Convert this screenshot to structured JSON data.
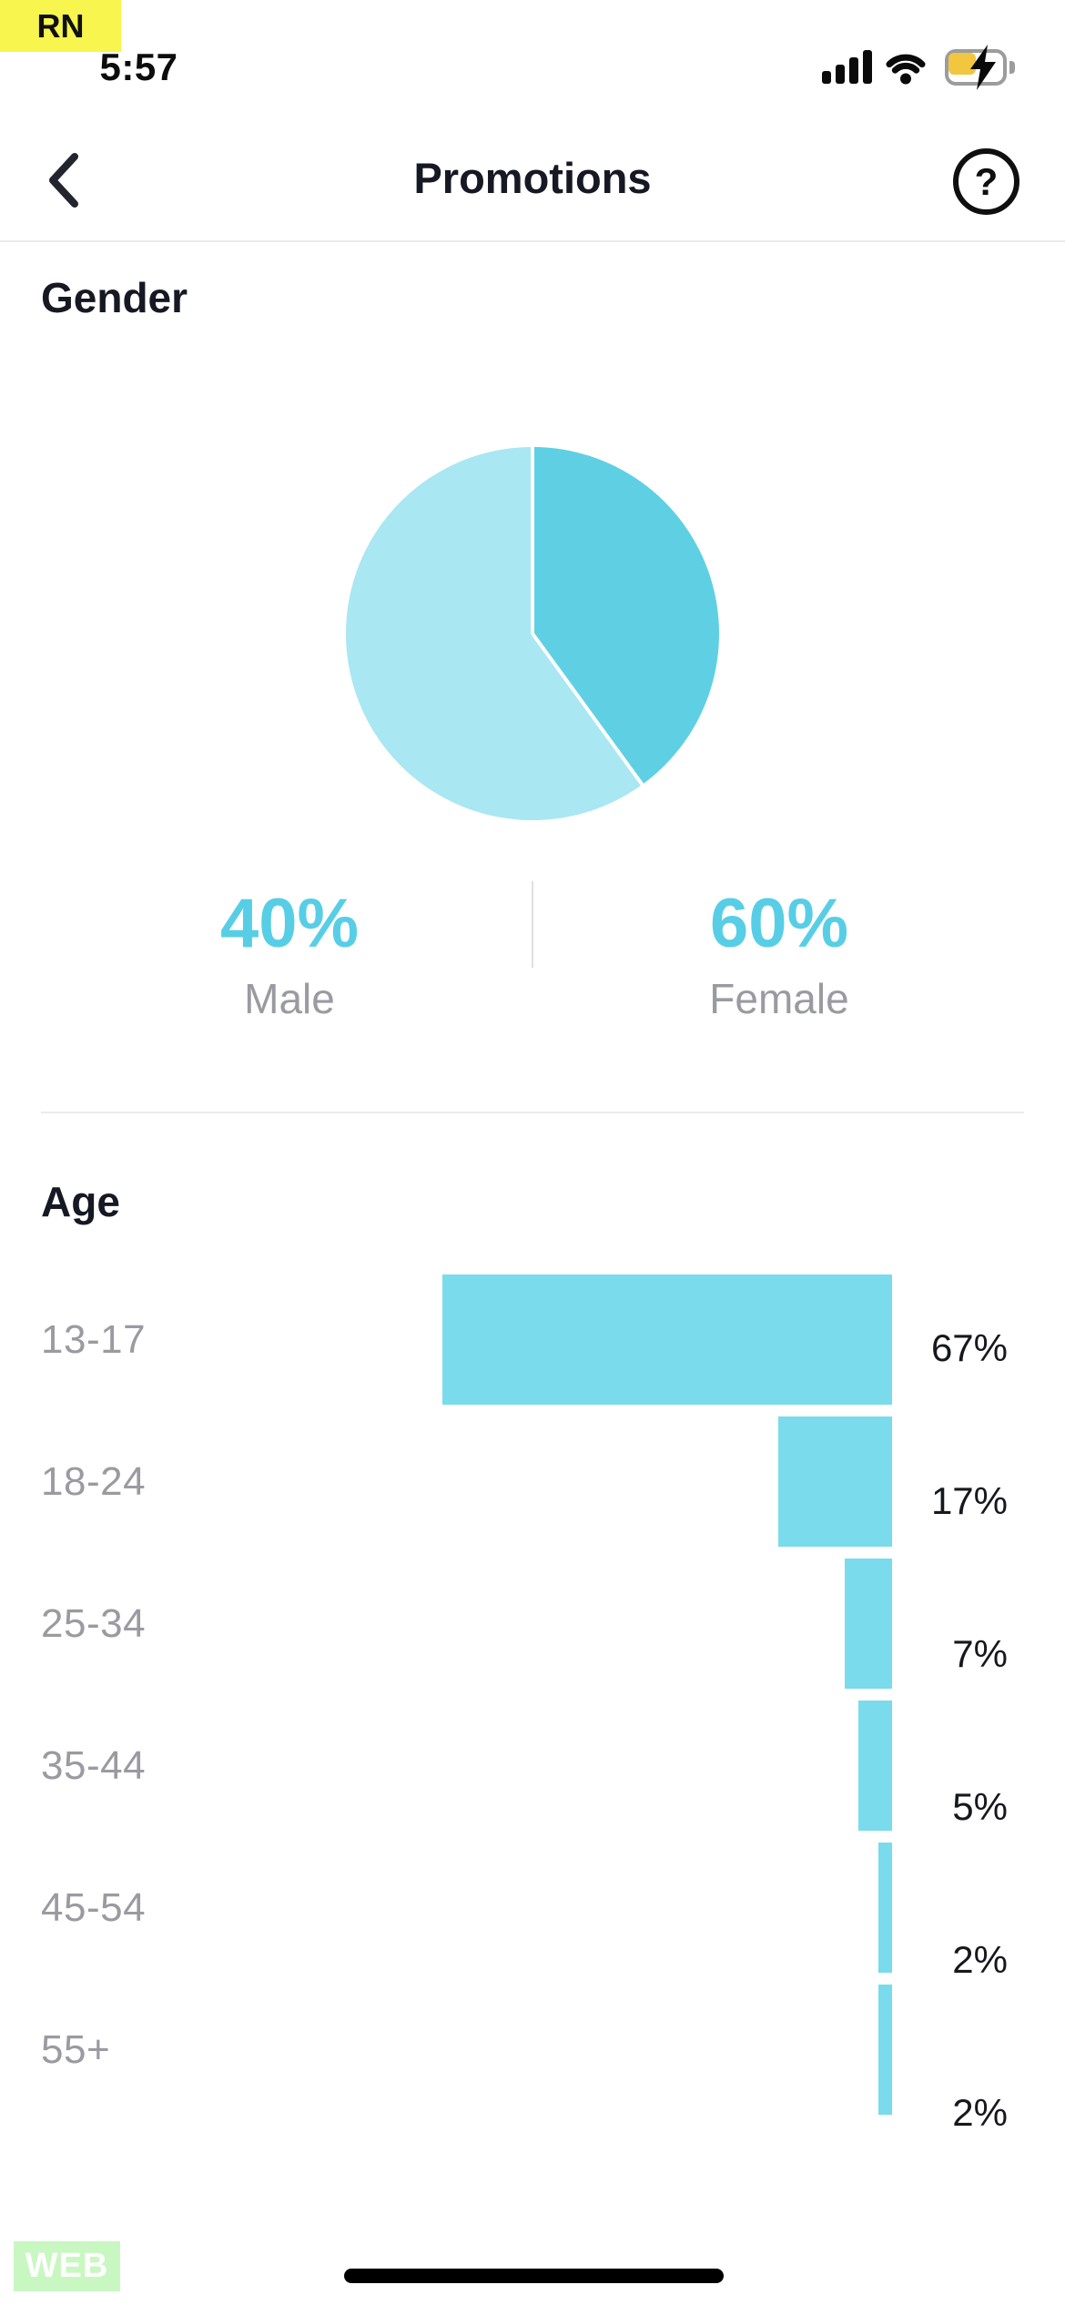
{
  "status_bar": {
    "badge": "RN",
    "time": "5:57",
    "icons": [
      "cellular-signal",
      "wifi",
      "battery-charging"
    ],
    "badge_color": "#f7f54e",
    "battery_fill_color": "#f2c63e"
  },
  "header": {
    "title": "Promotions",
    "back_icon": "chevron-left",
    "help_icon": "question-mark-circle"
  },
  "gender": {
    "heading": "Gender",
    "male": {
      "percent": "40%",
      "label": "Male"
    },
    "female": {
      "percent": "60%",
      "label": "Female"
    },
    "accent_color": "#57cee6",
    "label_color": "#9a9ba1"
  },
  "age": {
    "heading": "Age"
  },
  "footer": {
    "web_badge": "WEB",
    "web_badge_color": "#c9f7c1"
  },
  "chart_data": [
    {
      "type": "pie",
      "title": "Gender",
      "slices": [
        {
          "label": "Male",
          "value": 40,
          "color": "#5fd0e4"
        },
        {
          "label": "Female",
          "value": 60,
          "color": "#a9e7f2"
        }
      ],
      "start_angle_deg": 0,
      "direction": "clockwise",
      "separator_color": "#ffffff"
    },
    {
      "type": "bar",
      "orientation": "horizontal",
      "title": "Age",
      "categories": [
        "13-17",
        "18-24",
        "25-34",
        "35-44",
        "45-54",
        "55+"
      ],
      "values": [
        67,
        17,
        7,
        5,
        2,
        2
      ],
      "value_labels": [
        "67%",
        "17%",
        "7%",
        "5%",
        "2%",
        "2%"
      ],
      "bar_color": "#79dbec",
      "xlim": [
        0,
        67
      ],
      "grid": false,
      "legend": false
    }
  ]
}
